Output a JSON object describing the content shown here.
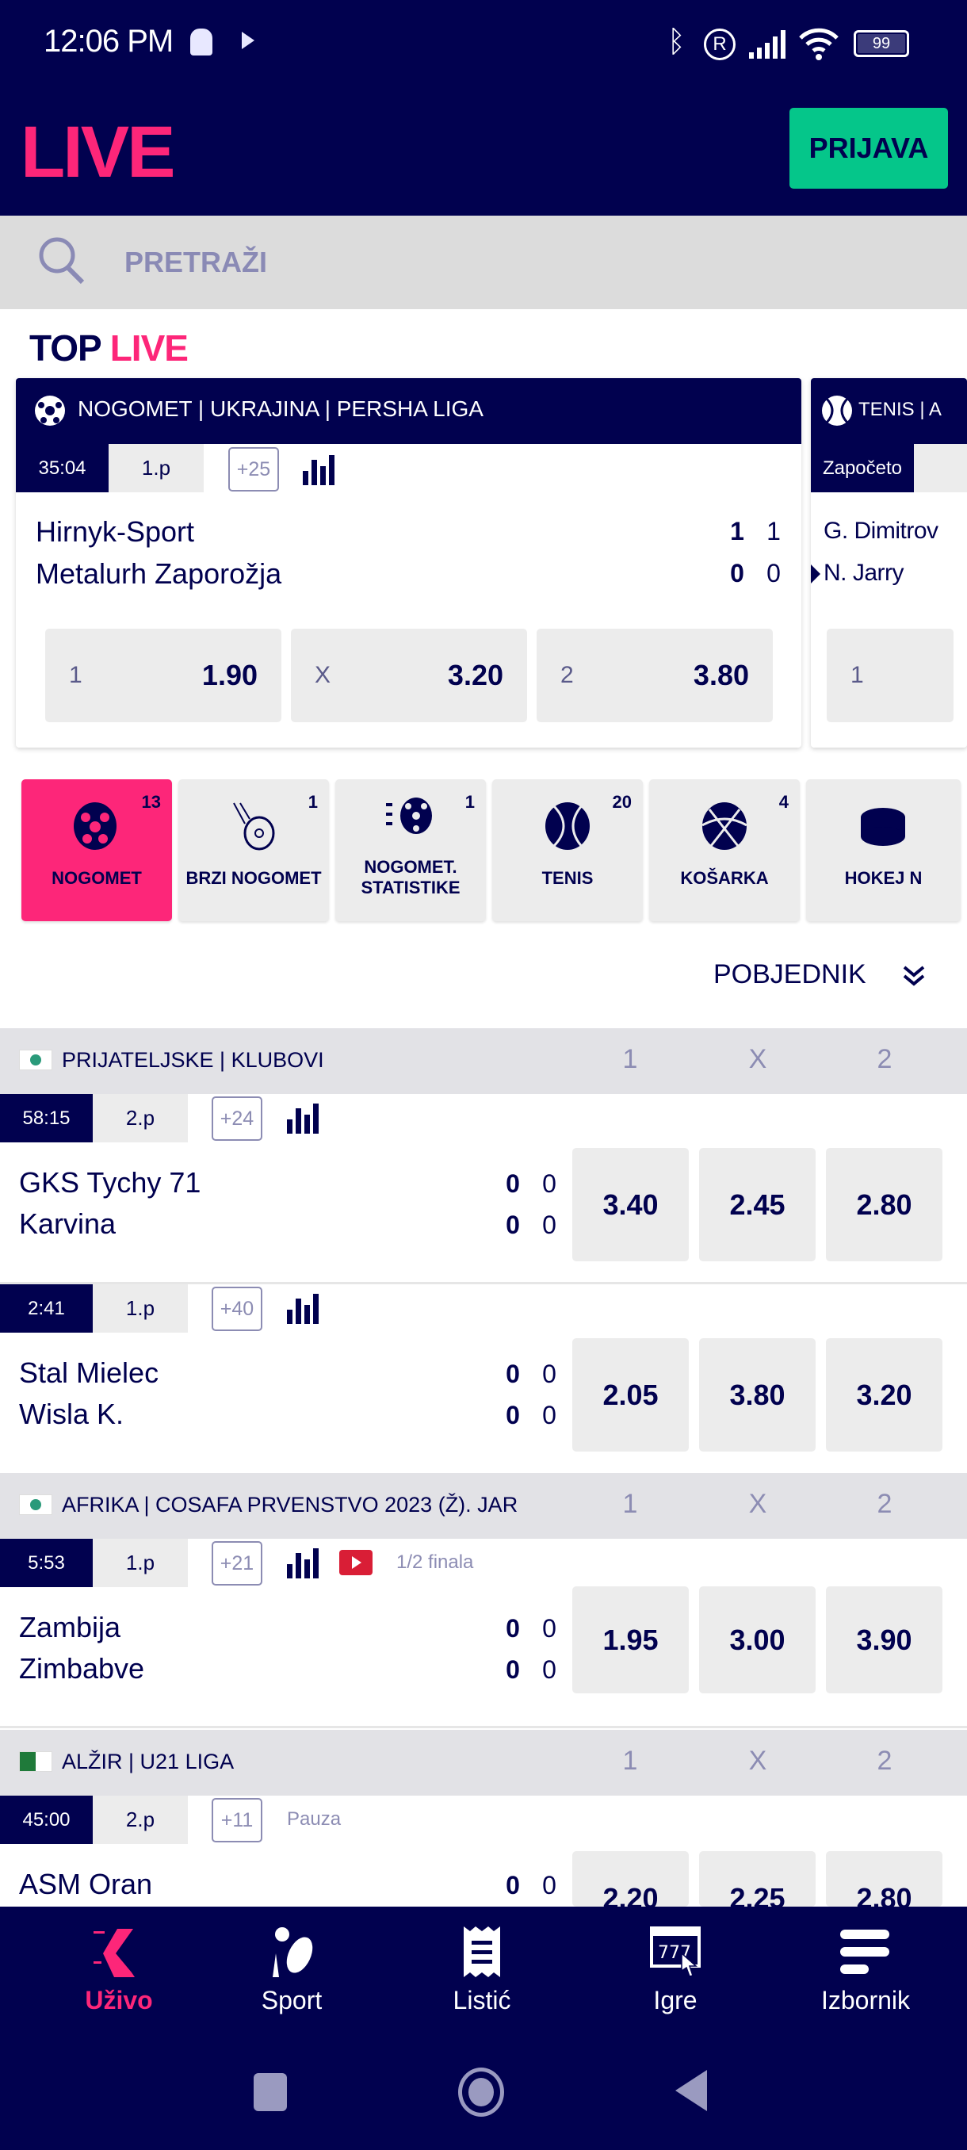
{
  "status_bar": {
    "time": "12:06 PM",
    "battery": "99"
  },
  "header": {
    "logo": "LIVE",
    "login_label": "PRIJAVA"
  },
  "search": {
    "placeholder": "PRETRAŽI"
  },
  "top_live": {
    "title_a": "TOP",
    "title_b": "LIVE",
    "cards": [
      {
        "league": "NOGOMET | UKRAJINA | PERSHA LIGA",
        "time": "35:04",
        "period": "1.p",
        "more": "+25",
        "home": "Hirnyk-Sport",
        "away": "Metalurh Zaporožja",
        "home_score": [
          "1",
          "1"
        ],
        "away_score": [
          "0",
          "0"
        ],
        "odds": [
          {
            "label": "1",
            "value": "1.90"
          },
          {
            "label": "X",
            "value": "3.20"
          },
          {
            "label": "2",
            "value": "3.80"
          }
        ]
      },
      {
        "league": "TENIS | A",
        "time": "Započeto",
        "home": "G. Dimitrov",
        "away": "N. Jarry",
        "odds": [
          {
            "label": "1"
          }
        ]
      }
    ]
  },
  "sports": [
    {
      "name": "NOGOMET",
      "count": "13",
      "active": true
    },
    {
      "name": "BRZI NOGOMET",
      "count": "1"
    },
    {
      "name": "NOGOMET. STATISTIKE",
      "count": "1"
    },
    {
      "name": "TENIS",
      "count": "20"
    },
    {
      "name": "KOŠARKA",
      "count": "4"
    },
    {
      "name": "HOKEJ N"
    }
  ],
  "market": {
    "label": "POBJEDNIK"
  },
  "columns": [
    "1",
    "X",
    "2"
  ],
  "leagues": [
    {
      "name": "PRIJATELJSKE | KLUBOVI",
      "matches": [
        {
          "time": "58:15",
          "period": "2.p",
          "more": "+24",
          "home": "GKS Tychy 71",
          "away": "Karvina",
          "home_score": [
            "0",
            "0"
          ],
          "away_score": [
            "0",
            "0"
          ],
          "odds": [
            "3.40",
            "2.45",
            "2.80"
          ]
        },
        {
          "time": "2:41",
          "period": "1.p",
          "more": "+40",
          "home": "Stal Mielec",
          "away": "Wisla K.",
          "home_score": [
            "0",
            "0"
          ],
          "away_score": [
            "0",
            "0"
          ],
          "odds": [
            "2.05",
            "3.80",
            "3.20"
          ]
        }
      ]
    },
    {
      "name": "AFRIKA | COSAFA PRVENSTVO 2023 (Ž). JAR",
      "matches": [
        {
          "time": "5:53",
          "period": "1.p",
          "more": "+21",
          "extra": "1/2 finala",
          "home": "Zambija",
          "away": "Zimbabve",
          "home_score": [
            "0",
            "0"
          ],
          "away_score": [
            "0",
            "0"
          ],
          "odds": [
            "1.95",
            "3.00",
            "3.90"
          ]
        }
      ]
    },
    {
      "name": "ALŽIR | U21 LIGA",
      "matches": [
        {
          "time": "45:00",
          "period": "2.p",
          "more": "+11",
          "extra": "Pauza",
          "home": "ASM Oran",
          "home_score": [
            "0",
            "0"
          ],
          "odds": [
            "2.20",
            "2.25",
            "2.80"
          ]
        }
      ]
    }
  ],
  "bottom_nav": [
    {
      "label": "Uživo",
      "active": true
    },
    {
      "label": "Sport"
    },
    {
      "label": "Listić"
    },
    {
      "label": "Igre"
    },
    {
      "label": "Izbornik"
    }
  ],
  "colors": {
    "navy": "#01014f",
    "accent": "#fd2679",
    "login": "#05c68a"
  }
}
